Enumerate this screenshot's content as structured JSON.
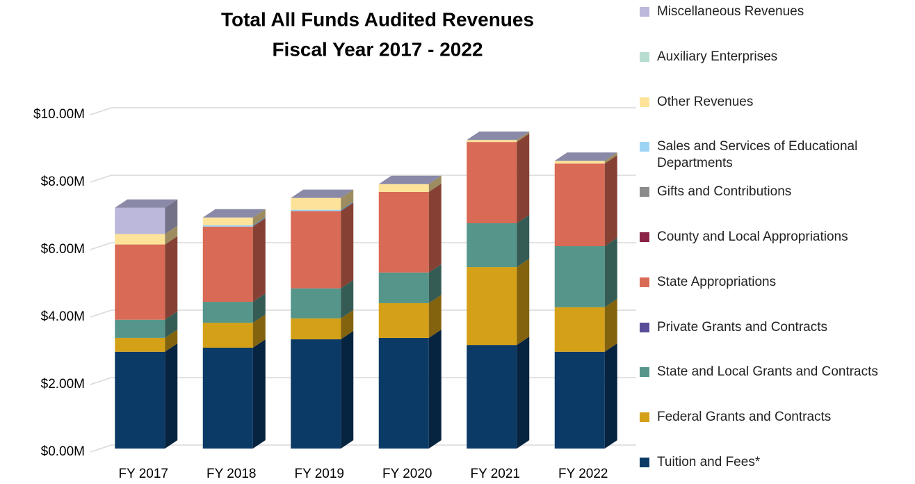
{
  "chart_data": {
    "type": "bar3d_stacked",
    "title": "Total All Funds Audited Revenues",
    "subtitle": "Fiscal Year 2017 - 2022",
    "categories": [
      "FY 2017",
      "FY 2018",
      "FY 2019",
      "FY 2020",
      "FY 2021",
      "FY 2022"
    ],
    "series": [
      {
        "name": "Tuition and Fees*",
        "color": "#0b3a66",
        "values": [
          2.87,
          2.99,
          3.24,
          3.28,
          3.07,
          2.87
        ]
      },
      {
        "name": "Federal Grants and Contracts",
        "color": "#d4a017",
        "values": [
          0.41,
          0.74,
          0.62,
          1.03,
          2.31,
          1.32
        ]
      },
      {
        "name": "State and Local Grants and Contracts",
        "color": "#55958a",
        "values": [
          0.54,
          0.62,
          0.89,
          0.91,
          1.3,
          1.81
        ]
      },
      {
        "name": "Private Grants and Contracts",
        "color": "#5a4e9a",
        "values": [
          0,
          0,
          0,
          0,
          0,
          0
        ]
      },
      {
        "name": "State Appropriations",
        "color": "#d96a55",
        "values": [
          2.23,
          2.23,
          2.29,
          2.39,
          2.41,
          2.45
        ]
      },
      {
        "name": "County and Local Appropriations",
        "color": "#8b2346",
        "values": [
          0,
          0,
          0,
          0,
          0,
          0
        ]
      },
      {
        "name": "Gifts and Contributions",
        "color": "#8c8c8c",
        "values": [
          0,
          0,
          0,
          0,
          0,
          0
        ]
      },
      {
        "name": "Sales and Services of Educational Departments",
        "color": "#9dd3f5",
        "values": [
          0,
          0.04,
          0.04,
          0,
          0,
          0
        ]
      },
      {
        "name": "Other Revenues",
        "color": "#fde39a",
        "values": [
          0.31,
          0.23,
          0.35,
          0.23,
          0.06,
          0.08
        ]
      },
      {
        "name": "Auxiliary Enterprises",
        "color": "#b6ddd0",
        "values": [
          0,
          0,
          0,
          0,
          0,
          0
        ]
      },
      {
        "name": "Miscellaneous Revenues",
        "color": "#bcb8dc",
        "values": [
          0.78,
          0,
          0,
          0,
          0,
          0
        ]
      }
    ],
    "ylim": [
      0,
      10
    ],
    "yticks": [
      {
        "value": 0,
        "label": "$0.00M"
      },
      {
        "value": 2,
        "label": "$2.00M"
      },
      {
        "value": 4,
        "label": "$4.00M"
      },
      {
        "value": 6,
        "label": "$6.00M"
      },
      {
        "value": 8,
        "label": "$8.00M"
      },
      {
        "value": 10,
        "label": "$10.00M"
      }
    ],
    "grid": true,
    "legend": "right"
  }
}
